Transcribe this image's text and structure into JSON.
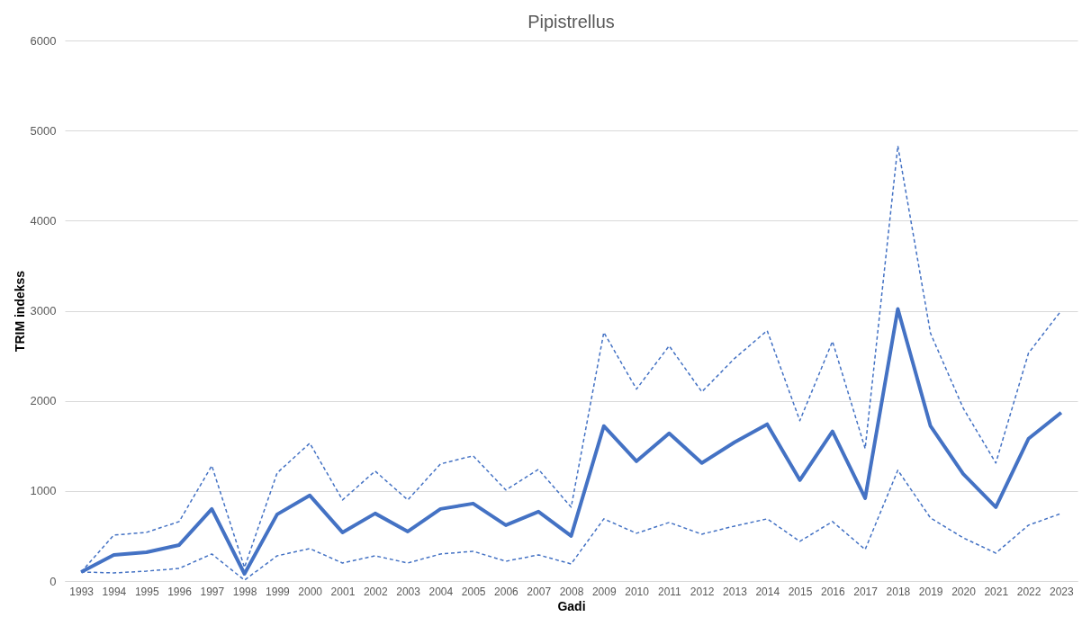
{
  "chart_data": {
    "type": "line",
    "title": "Pipistrellus",
    "xlabel": "Gadi",
    "ylabel": "TRIM indekss",
    "categories": [
      "1993",
      "1994",
      "1995",
      "1996",
      "1997",
      "1998",
      "1999",
      "2000",
      "2001",
      "2002",
      "2003",
      "2004",
      "2005",
      "2006",
      "2007",
      "2008",
      "2009",
      "2010",
      "2011",
      "2012",
      "2013",
      "2014",
      "2015",
      "2016",
      "2017",
      "2018",
      "2019",
      "2020",
      "2021",
      "2022",
      "2023"
    ],
    "series": [
      {
        "color": "#4472c4",
        "line_style": "solid",
        "values": [
          100,
          290,
          320,
          400,
          800,
          80,
          740,
          950,
          540,
          750,
          550,
          800,
          860,
          620,
          770,
          500,
          1720,
          1330,
          1640,
          1310,
          1540,
          1740,
          1120,
          1660,
          920,
          3020,
          1720,
          1190,
          820,
          1580,
          1870
        ]
      },
      {
        "color": "#4472c4",
        "line_style": "dashed",
        "values": [
          100,
          510,
          540,
          660,
          1280,
          150,
          1200,
          1530,
          900,
          1220,
          900,
          1300,
          1390,
          1010,
          1240,
          820,
          2760,
          2130,
          2610,
          2100,
          2470,
          2780,
          1780,
          2660,
          1470,
          4830,
          2750,
          1920,
          1310,
          2530,
          3000
        ]
      },
      {
        "color": "#4472c4",
        "line_style": "dashed",
        "values": [
          100,
          90,
          110,
          140,
          300,
          10,
          280,
          360,
          200,
          280,
          200,
          300,
          330,
          220,
          290,
          190,
          690,
          530,
          650,
          520,
          610,
          690,
          440,
          660,
          350,
          1230,
          700,
          480,
          310,
          620,
          750
        ]
      }
    ],
    "ylim": [
      0,
      6000
    ],
    "yticks": [
      0,
      1000,
      2000,
      3000,
      4000,
      5000,
      6000
    ],
    "grid": "y",
    "marker": "none"
  }
}
